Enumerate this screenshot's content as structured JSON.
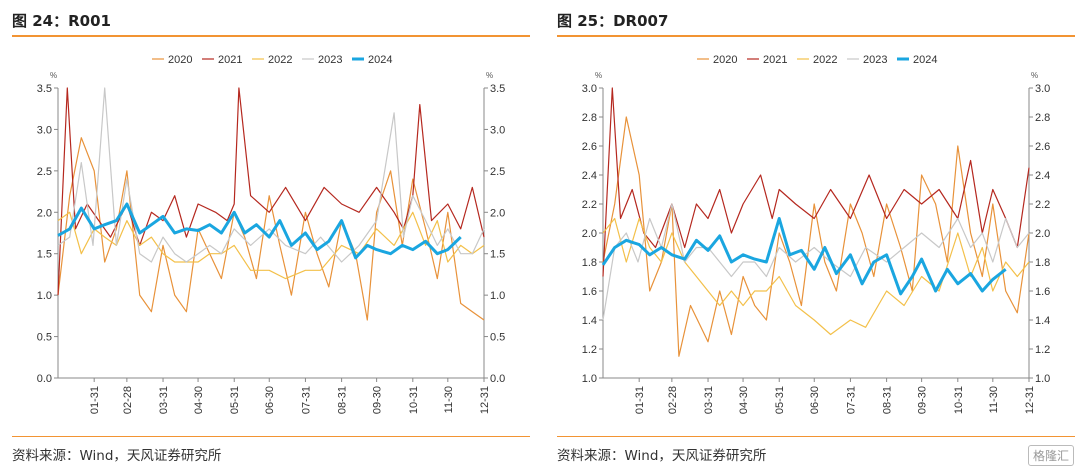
{
  "source_text": "资料来源：Wind，天风证券研究所",
  "watermark": "格隆汇",
  "series_styles": [
    {
      "name": "2020",
      "color": "#e8923a",
      "width": 1.2
    },
    {
      "name": "2021",
      "color": "#b5281f",
      "width": 1.2
    },
    {
      "name": "2022",
      "color": "#f3c04a",
      "width": 1.2
    },
    {
      "name": "2023",
      "color": "#c8c8c8",
      "width": 1.2
    },
    {
      "name": "2024",
      "color": "#1aa6e0",
      "width": 3
    }
  ],
  "chart_data": [
    {
      "title": "图 24：R001",
      "type": "line",
      "unit_left": "%",
      "unit_right": "%",
      "ylim": [
        0,
        3.5
      ],
      "yticks": [
        "0.0",
        "0.5",
        "1.0",
        "1.5",
        "2.0",
        "2.5",
        "3.0",
        "3.5"
      ],
      "xticks": [
        "01-31",
        "02-28",
        "03-31",
        "04-30",
        "05-31",
        "06-30",
        "07-31",
        "08-31",
        "09-30",
        "10-31",
        "11-30",
        "12-31"
      ],
      "x_anchor": [
        0,
        31,
        59,
        90,
        120,
        151,
        181,
        212,
        243,
        273,
        304,
        334,
        365
      ],
      "legend": [
        "2020",
        "2021",
        "2022",
        "2023",
        "2024"
      ],
      "series": [
        {
          "name": "2020",
          "x": [
            0,
            10,
            20,
            31,
            40,
            50,
            59,
            70,
            80,
            90,
            100,
            110,
            120,
            130,
            140,
            151,
            160,
            170,
            181,
            190,
            200,
            212,
            222,
            232,
            243,
            255,
            265,
            273,
            285,
            295,
            304,
            315,
            325,
            334,
            345,
            355,
            365
          ],
          "y": [
            1.0,
            2.2,
            2.9,
            2.5,
            1.4,
            1.8,
            2.5,
            1.0,
            0.8,
            1.6,
            1.0,
            0.8,
            1.8,
            1.5,
            1.2,
            2.0,
            1.7,
            1.2,
            2.2,
            1.6,
            1.0,
            2.0,
            1.5,
            1.1,
            1.9,
            1.5,
            0.7,
            2.0,
            2.5,
            1.6,
            2.4,
            1.8,
            1.2,
            2.0,
            0.9,
            0.8,
            0.7
          ]
        },
        {
          "name": "2021",
          "x": [
            0,
            8,
            15,
            25,
            35,
            45,
            59,
            70,
            80,
            90,
            100,
            110,
            120,
            135,
            145,
            151,
            155,
            165,
            181,
            195,
            212,
            228,
            243,
            258,
            273,
            288,
            296,
            304,
            310,
            320,
            334,
            345,
            355,
            365
          ],
          "y": [
            1.0,
            3.5,
            1.8,
            2.1,
            1.9,
            1.7,
            2.1,
            1.6,
            2.0,
            1.9,
            2.2,
            1.7,
            2.1,
            2.0,
            1.9,
            2.1,
            3.5,
            2.2,
            2.0,
            2.3,
            1.9,
            2.3,
            2.1,
            2.0,
            2.3,
            2.0,
            1.8,
            2.2,
            3.3,
            1.9,
            2.1,
            1.8,
            2.3,
            1.7
          ]
        },
        {
          "name": "2022",
          "x": [
            0,
            10,
            20,
            31,
            40,
            50,
            59,
            70,
            80,
            90,
            100,
            110,
            120,
            130,
            140,
            151,
            165,
            181,
            195,
            212,
            225,
            243,
            258,
            273,
            288,
            304,
            315,
            325,
            334,
            345,
            355,
            365
          ],
          "y": [
            1.9,
            2.0,
            1.5,
            1.8,
            1.7,
            1.6,
            1.9,
            1.6,
            1.7,
            1.5,
            1.4,
            1.4,
            1.4,
            1.5,
            1.5,
            1.6,
            1.3,
            1.3,
            1.2,
            1.3,
            1.3,
            1.6,
            1.5,
            1.8,
            1.6,
            2.0,
            1.6,
            1.9,
            1.4,
            1.6,
            1.5,
            1.6
          ]
        },
        {
          "name": "2023",
          "x": [
            0,
            10,
            20,
            30,
            40,
            50,
            59,
            70,
            80,
            90,
            100,
            110,
            120,
            130,
            140,
            151,
            165,
            181,
            195,
            212,
            225,
            243,
            258,
            273,
            288,
            296,
            304,
            315,
            325,
            334,
            345,
            355,
            365
          ],
          "y": [
            1.6,
            1.7,
            2.6,
            1.6,
            3.5,
            1.6,
            2.4,
            1.5,
            1.4,
            1.7,
            1.5,
            1.4,
            1.5,
            1.6,
            1.5,
            1.8,
            1.6,
            1.8,
            1.6,
            1.5,
            1.7,
            1.4,
            1.6,
            1.9,
            3.2,
            1.7,
            2.2,
            1.9,
            1.6,
            1.8,
            1.5,
            1.5,
            1.8
          ]
        },
        {
          "name": "2024",
          "x": [
            0,
            10,
            20,
            31,
            40,
            50,
            59,
            70,
            80,
            90,
            100,
            110,
            120,
            130,
            140,
            151,
            160,
            170,
            181,
            190,
            200,
            212,
            222,
            232,
            243,
            255,
            265,
            273,
            285,
            295,
            304,
            315,
            325,
            334,
            345
          ],
          "y": [
            1.72,
            1.8,
            2.05,
            1.8,
            1.85,
            1.9,
            2.1,
            1.75,
            1.85,
            1.95,
            1.75,
            1.8,
            1.78,
            1.85,
            1.75,
            2.0,
            1.75,
            1.85,
            1.7,
            1.9,
            1.6,
            1.75,
            1.55,
            1.65,
            1.9,
            1.45,
            1.6,
            1.55,
            1.5,
            1.6,
            1.55,
            1.65,
            1.5,
            1.55,
            1.7
          ]
        }
      ]
    },
    {
      "title": "图 25：DR007",
      "type": "line",
      "unit_left": "%",
      "unit_right": "%",
      "ylim": [
        1.0,
        3.0
      ],
      "yticks": [
        "1.0",
        "1.2",
        "1.4",
        "1.6",
        "1.8",
        "2.0",
        "2.2",
        "2.4",
        "2.6",
        "2.8",
        "3.0"
      ],
      "xticks": [
        "01-31",
        "02-28",
        "03-31",
        "04-30",
        "05-31",
        "06-30",
        "07-31",
        "08-31",
        "09-30",
        "10-31",
        "11-30",
        "12-31"
      ],
      "x_anchor": [
        0,
        31,
        59,
        90,
        120,
        151,
        181,
        212,
        243,
        273,
        304,
        334,
        365
      ],
      "legend": [
        "2020",
        "2021",
        "2022",
        "2023",
        "2024"
      ],
      "series": [
        {
          "name": "2020",
          "x": [
            0,
            10,
            20,
            31,
            40,
            50,
            59,
            65,
            75,
            90,
            100,
            110,
            120,
            130,
            140,
            151,
            160,
            170,
            181,
            190,
            200,
            212,
            222,
            232,
            243,
            255,
            265,
            273,
            285,
            295,
            304,
            315,
            325,
            334,
            345,
            355,
            365
          ],
          "y": [
            1.8,
            2.2,
            2.8,
            2.4,
            1.6,
            1.8,
            2.2,
            1.15,
            1.5,
            1.25,
            1.6,
            1.3,
            1.7,
            1.5,
            1.4,
            2.0,
            1.8,
            1.5,
            2.2,
            1.8,
            1.6,
            2.2,
            2.0,
            1.7,
            2.2,
            1.9,
            1.6,
            2.4,
            2.2,
            1.8,
            2.6,
            2.0,
            1.7,
            2.2,
            1.6,
            1.45,
            2.0
          ]
        },
        {
          "name": "2021",
          "x": [
            0,
            8,
            15,
            25,
            35,
            45,
            59,
            70,
            80,
            90,
            100,
            110,
            120,
            135,
            145,
            151,
            165,
            181,
            195,
            212,
            228,
            243,
            258,
            273,
            288,
            304,
            315,
            325,
            334,
            345,
            355,
            365
          ],
          "y": [
            1.7,
            3.0,
            2.1,
            2.3,
            2.0,
            1.9,
            2.2,
            1.9,
            2.2,
            2.1,
            2.3,
            2.0,
            2.2,
            2.4,
            2.1,
            2.3,
            2.2,
            2.1,
            2.3,
            2.1,
            2.4,
            2.1,
            2.3,
            2.2,
            2.3,
            2.1,
            2.5,
            2.0,
            2.3,
            2.1,
            1.9,
            2.45
          ]
        },
        {
          "name": "2022",
          "x": [
            0,
            10,
            20,
            31,
            40,
            50,
            59,
            70,
            80,
            90,
            100,
            110,
            120,
            130,
            140,
            151,
            165,
            181,
            195,
            212,
            225,
            243,
            258,
            273,
            288,
            304,
            315,
            325,
            334,
            345,
            355,
            365
          ],
          "y": [
            2.0,
            2.1,
            1.8,
            2.1,
            1.9,
            1.8,
            2.0,
            1.8,
            1.7,
            1.6,
            1.5,
            1.6,
            1.5,
            1.6,
            1.6,
            1.7,
            1.5,
            1.4,
            1.3,
            1.4,
            1.35,
            1.6,
            1.5,
            1.7,
            1.6,
            2.0,
            1.7,
            1.9,
            1.6,
            1.8,
            1.7,
            1.8
          ]
        },
        {
          "name": "2023",
          "x": [
            0,
            10,
            20,
            30,
            40,
            50,
            59,
            70,
            80,
            90,
            100,
            110,
            120,
            130,
            140,
            151,
            165,
            181,
            195,
            212,
            225,
            243,
            258,
            273,
            288,
            304,
            315,
            325,
            334,
            345,
            355,
            365
          ],
          "y": [
            1.4,
            1.9,
            2.0,
            1.8,
            2.1,
            1.9,
            2.2,
            1.8,
            1.9,
            1.9,
            1.8,
            1.7,
            1.8,
            1.8,
            1.7,
            1.9,
            1.8,
            1.9,
            1.8,
            1.7,
            1.9,
            1.8,
            1.9,
            2.0,
            1.9,
            2.1,
            1.9,
            2.0,
            1.8,
            2.1,
            1.9,
            2.0
          ]
        },
        {
          "name": "2024",
          "x": [
            0,
            10,
            20,
            31,
            40,
            50,
            59,
            70,
            80,
            90,
            100,
            110,
            120,
            130,
            140,
            151,
            160,
            170,
            181,
            190,
            200,
            212,
            222,
            232,
            243,
            255,
            265,
            273,
            285,
            295,
            304,
            315,
            325,
            334,
            345
          ],
          "y": [
            1.78,
            1.9,
            1.95,
            1.92,
            1.85,
            1.9,
            1.85,
            1.82,
            1.95,
            1.88,
            1.98,
            1.8,
            1.85,
            1.82,
            1.8,
            2.1,
            1.85,
            1.88,
            1.75,
            1.9,
            1.72,
            1.85,
            1.65,
            1.8,
            1.85,
            1.58,
            1.7,
            1.82,
            1.6,
            1.75,
            1.65,
            1.72,
            1.6,
            1.68,
            1.75
          ]
        }
      ]
    }
  ]
}
